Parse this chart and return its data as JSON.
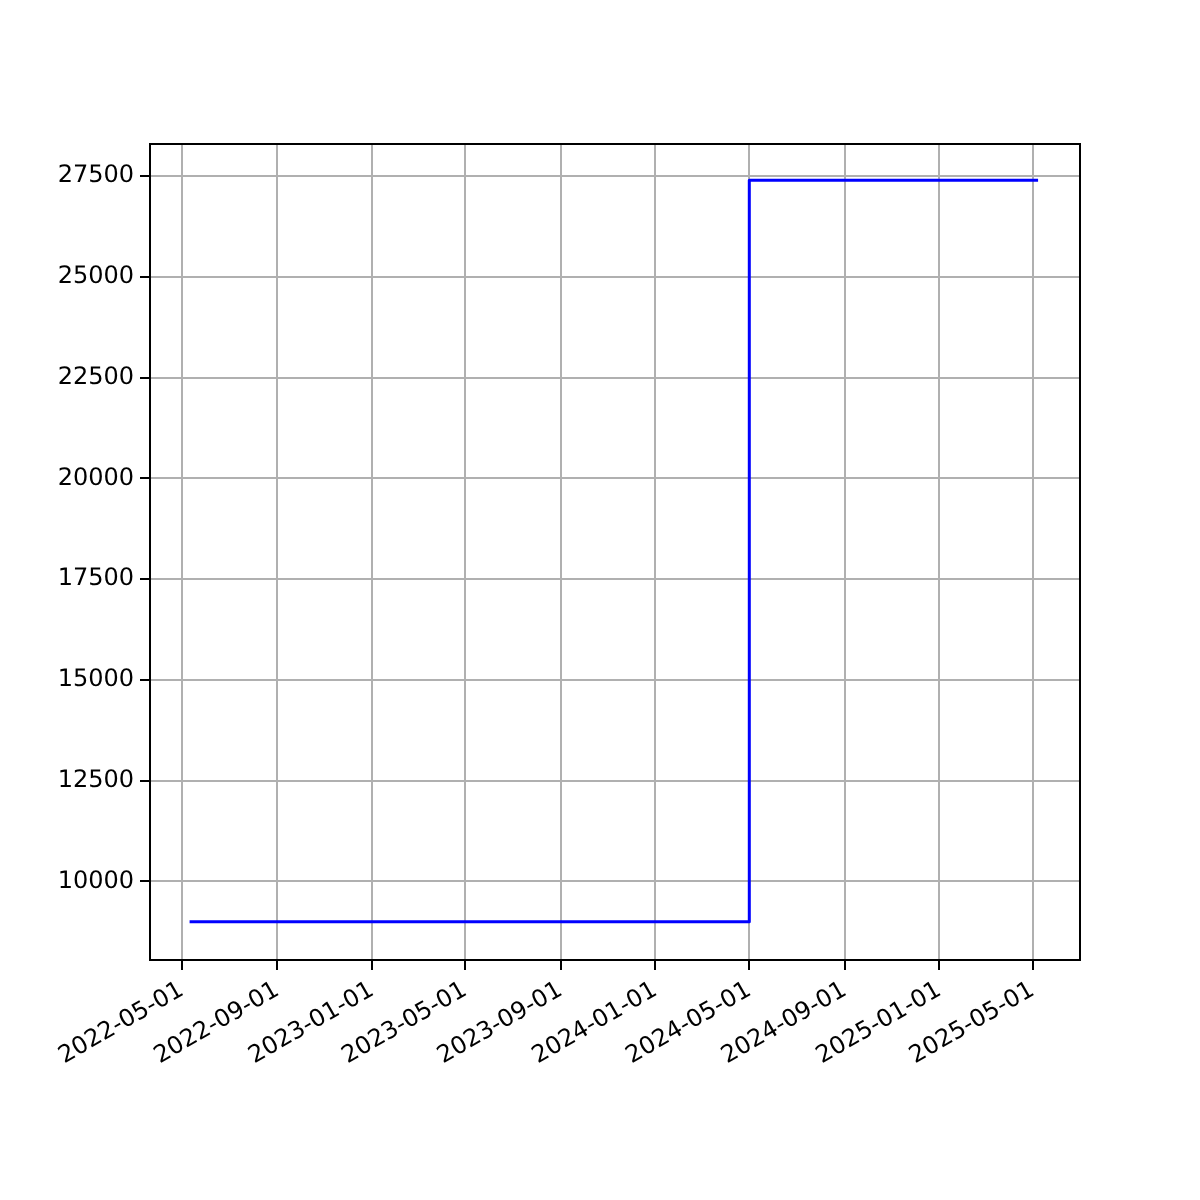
{
  "chart_data": {
    "type": "step",
    "x": [
      "2022-05-11",
      "2024-05-01",
      "2025-05-08"
    ],
    "series": [
      {
        "color": "#0000ff",
        "values": [
          9000,
          27400,
          27400
        ]
      }
    ],
    "xlim": [
      "2022-03-21",
      "2025-07-01"
    ],
    "xticks": [
      "2022-05-01",
      "2022-09-01",
      "2023-01-01",
      "2023-05-01",
      "2023-09-01",
      "2024-01-01",
      "2024-05-01",
      "2024-09-01",
      "2025-01-01",
      "2025-05-01"
    ],
    "ylim": [
      8050,
      28300
    ],
    "yticks": [
      10000,
      12500,
      15000,
      17500,
      20000,
      22500,
      25000,
      27500
    ],
    "grid": true,
    "legend": false
  }
}
